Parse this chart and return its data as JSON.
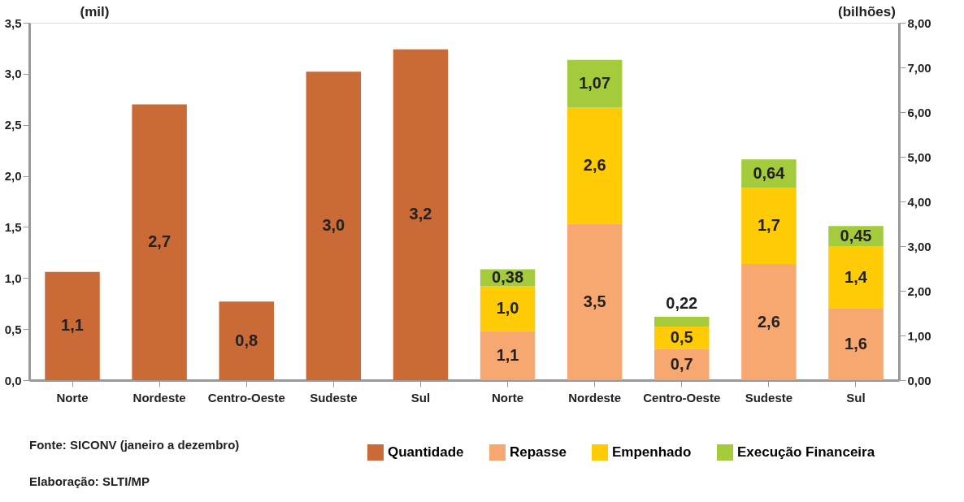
{
  "chart_data": {
    "type": "bar",
    "categories": [
      "Norte",
      "Nordeste",
      "Centro-Oeste",
      "Sudeste",
      "Sul",
      "Norte",
      "Nordeste",
      "Centro-Oeste",
      "Sudeste",
      "Sul"
    ],
    "ylabel": "(mil)",
    "y2label": "(bilhões)",
    "ylim": [
      0,
      3.5
    ],
    "yticks": [
      {
        "value": 0,
        "label": "0,0"
      },
      {
        "value": 0.5,
        "label": "0,5"
      },
      {
        "value": 1,
        "label": "1,0"
      },
      {
        "value": 1.5,
        "label": "1,5"
      },
      {
        "value": 2,
        "label": "2,0"
      },
      {
        "value": 2.5,
        "label": "2,5"
      },
      {
        "value": 3,
        "label": "3,0"
      },
      {
        "value": 3.5,
        "label": "3,5"
      }
    ],
    "y2lim": [
      0,
      8
    ],
    "y2ticks": [
      {
        "value": 0,
        "label": "0,00"
      },
      {
        "value": 1,
        "label": "1,00"
      },
      {
        "value": 2,
        "label": "2,00"
      },
      {
        "value": 3,
        "label": "3,00"
      },
      {
        "value": 4,
        "label": "4,00"
      },
      {
        "value": 5,
        "label": "5,00"
      },
      {
        "value": 6,
        "label": "6,00"
      },
      {
        "value": 7,
        "label": "7,00"
      },
      {
        "value": 8,
        "label": "8,00"
      }
    ],
    "stacked": true,
    "series": [
      {
        "name": "Quantidade",
        "color": "#c96a37",
        "values": [
          1.06,
          2.7,
          0.77,
          3.02,
          3.24,
          null,
          null,
          null,
          null,
          null
        ],
        "value_labels": [
          "1,1",
          "2,7",
          "0,8",
          "3,0",
          "3,2",
          null,
          null,
          null,
          null,
          null
        ]
      },
      {
        "name": "Repasse",
        "color": "#f7a770",
        "axis": "y2",
        "values": [
          null,
          null,
          null,
          null,
          null,
          1.1,
          3.5,
          0.7,
          2.6,
          1.6
        ],
        "value_labels": [
          null,
          null,
          null,
          null,
          null,
          "1,1",
          "3,5",
          "0,7",
          "2,6",
          "1,6"
        ]
      },
      {
        "name": "Empenhado",
        "color": "#ffcb05",
        "axis": "y2",
        "values": [
          null,
          null,
          null,
          null,
          null,
          1.0,
          2.6,
          0.5,
          1.7,
          1.4
        ],
        "value_labels": [
          null,
          null,
          null,
          null,
          null,
          "1,0",
          "2,6",
          "0,5",
          "1,7",
          "1,4"
        ]
      },
      {
        "name": "Execução Financeira",
        "color": "#a4cb3c",
        "axis": "y2",
        "values": [
          null,
          null,
          null,
          null,
          null,
          0.38,
          1.07,
          0.22,
          0.64,
          0.45
        ],
        "value_labels": [
          null,
          null,
          null,
          null,
          null,
          "0,38",
          "1,07",
          "0,22",
          "0,64",
          "0,45"
        ]
      }
    ],
    "annotations": [
      "Fonte: SICONV (janeiro a dezembro)",
      "Elaboração: SLTI/MP"
    ],
    "legend": "bottom",
    "grid": false
  }
}
